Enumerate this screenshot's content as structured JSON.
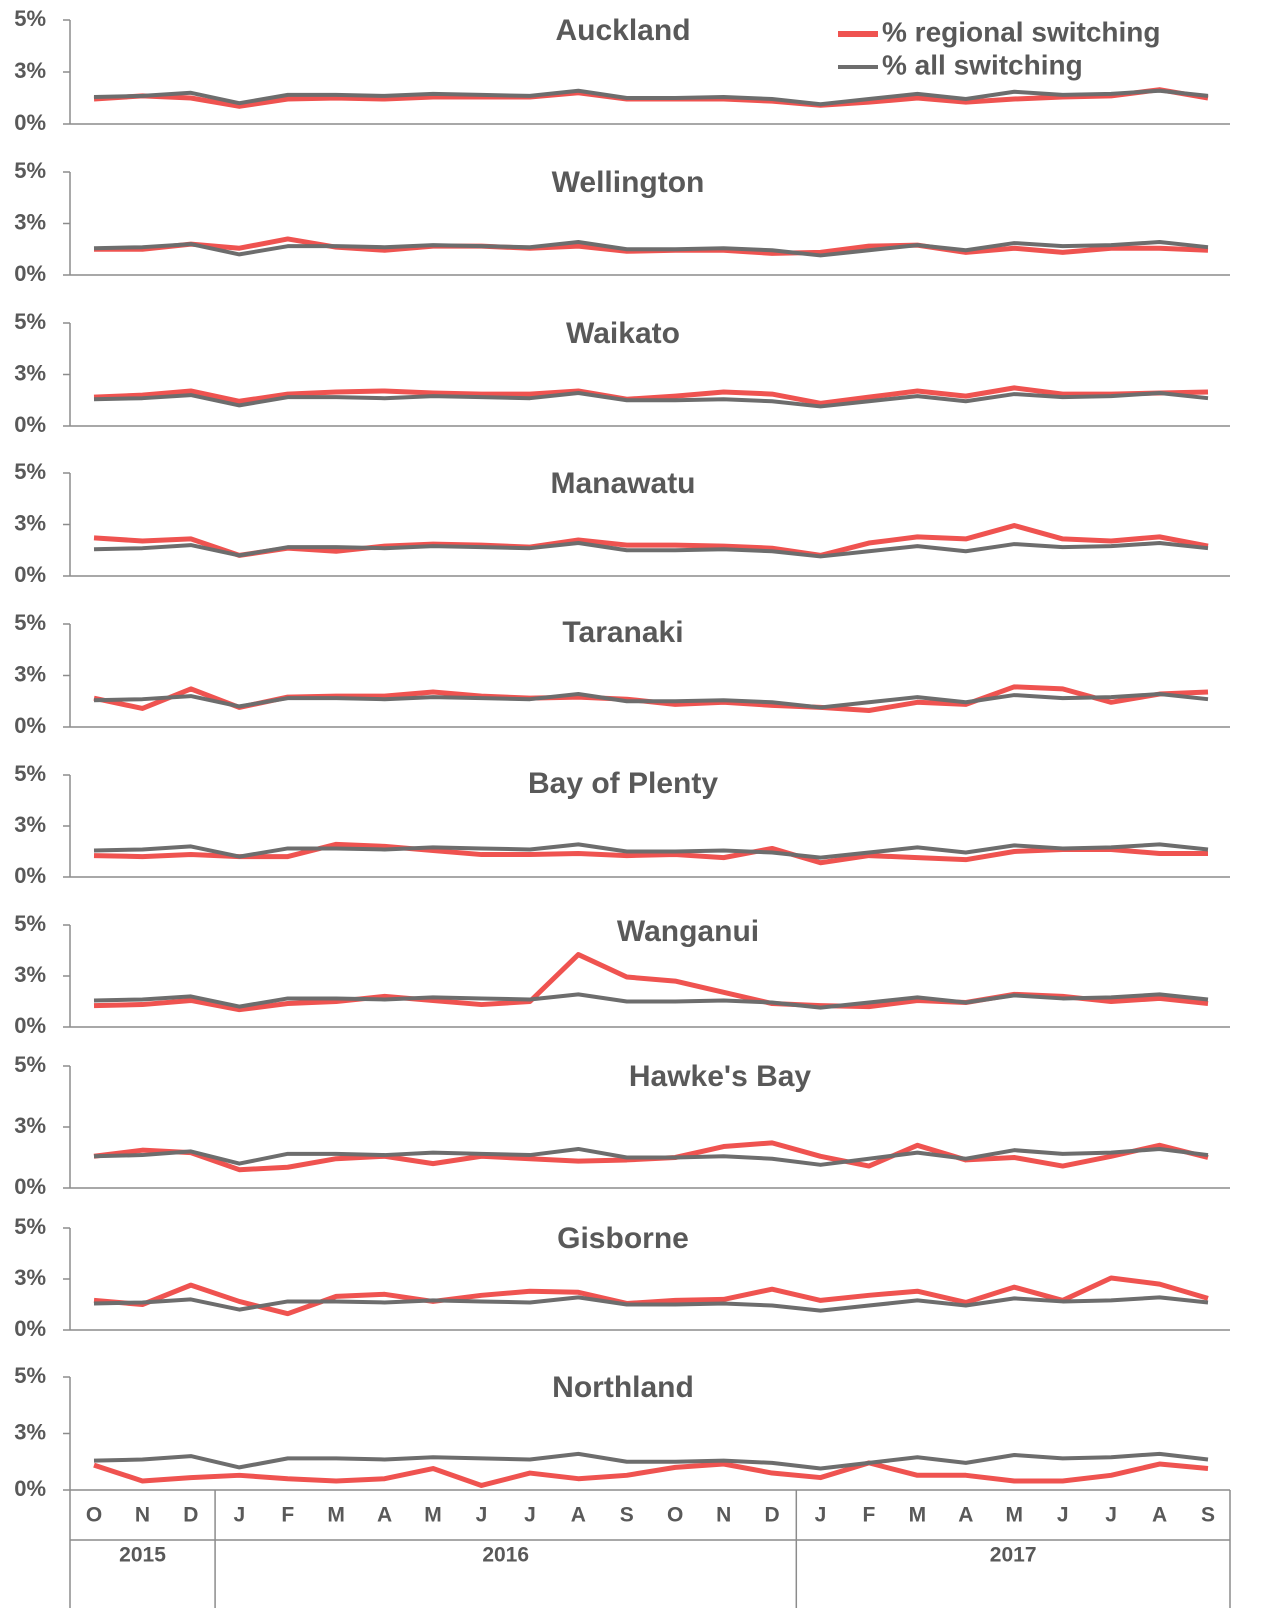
{
  "chart_data": [
    {
      "type": "line",
      "title": "Auckland",
      "legend": "upper right",
      "ylim": [
        0,
        5
      ],
      "yticks": [
        {
          "value": 0,
          "label": "0%"
        },
        {
          "value": 2.5,
          "label": "3%"
        },
        {
          "value": 5,
          "label": "5%"
        }
      ],
      "series": [
        {
          "name": "% regional switching",
          "color": "#ef5350",
          "values": [
            1.2,
            1.35,
            1.25,
            0.85,
            1.2,
            1.25,
            1.2,
            1.3,
            1.3,
            1.3,
            1.5,
            1.2,
            1.2,
            1.2,
            1.1,
            0.9,
            1.05,
            1.25,
            1.05,
            1.2,
            1.3,
            1.35,
            1.65,
            1.25
          ]
        },
        {
          "name": "% all switching",
          "color": "#6d6d6d",
          "values": [
            1.3,
            1.35,
            1.5,
            1.0,
            1.4,
            1.4,
            1.35,
            1.45,
            1.4,
            1.35,
            1.6,
            1.25,
            1.25,
            1.3,
            1.2,
            0.95,
            1.2,
            1.45,
            1.2,
            1.55,
            1.4,
            1.45,
            1.6,
            1.35
          ]
        }
      ]
    },
    {
      "type": "line",
      "title": "Wellington",
      "ylim": [
        0,
        5
      ],
      "yticks": [
        {
          "value": 0,
          "label": "0%"
        },
        {
          "value": 2.5,
          "label": "3%"
        },
        {
          "value": 5,
          "label": "5%"
        }
      ],
      "series": [
        {
          "color": "#ef5350",
          "values": [
            1.25,
            1.25,
            1.5,
            1.3,
            1.75,
            1.35,
            1.2,
            1.4,
            1.4,
            1.3,
            1.4,
            1.15,
            1.2,
            1.2,
            1.05,
            1.1,
            1.4,
            1.45,
            1.1,
            1.3,
            1.1,
            1.3,
            1.3,
            1.2
          ]
        },
        {
          "color": "#6d6d6d",
          "values": [
            1.3,
            1.35,
            1.5,
            1.0,
            1.4,
            1.4,
            1.35,
            1.45,
            1.4,
            1.35,
            1.6,
            1.25,
            1.25,
            1.3,
            1.2,
            0.95,
            1.2,
            1.45,
            1.2,
            1.55,
            1.4,
            1.45,
            1.6,
            1.35
          ]
        }
      ]
    },
    {
      "type": "line",
      "title": "Waikato",
      "ylim": [
        0,
        5
      ],
      "yticks": [
        {
          "value": 0,
          "label": "0%"
        },
        {
          "value": 2.5,
          "label": "3%"
        },
        {
          "value": 5,
          "label": "5%"
        }
      ],
      "series": [
        {
          "color": "#ef5350",
          "values": [
            1.4,
            1.5,
            1.7,
            1.2,
            1.55,
            1.65,
            1.7,
            1.6,
            1.55,
            1.55,
            1.7,
            1.3,
            1.45,
            1.65,
            1.55,
            1.1,
            1.4,
            1.7,
            1.45,
            1.85,
            1.55,
            1.55,
            1.6,
            1.65
          ]
        },
        {
          "color": "#6d6d6d",
          "values": [
            1.3,
            1.35,
            1.5,
            1.0,
            1.4,
            1.4,
            1.35,
            1.45,
            1.4,
            1.35,
            1.6,
            1.25,
            1.25,
            1.3,
            1.2,
            0.95,
            1.2,
            1.45,
            1.2,
            1.55,
            1.4,
            1.45,
            1.6,
            1.35
          ]
        }
      ]
    },
    {
      "type": "line",
      "title": "Manawatu",
      "ylim": [
        0,
        5
      ],
      "yticks": [
        {
          "value": 0,
          "label": "0%"
        },
        {
          "value": 2.5,
          "label": "3%"
        },
        {
          "value": 5,
          "label": "5%"
        }
      ],
      "series": [
        {
          "color": "#ef5350",
          "values": [
            1.85,
            1.7,
            1.8,
            1.0,
            1.35,
            1.2,
            1.45,
            1.55,
            1.5,
            1.4,
            1.75,
            1.5,
            1.5,
            1.45,
            1.35,
            1.0,
            1.6,
            1.9,
            1.8,
            2.45,
            1.8,
            1.7,
            1.9,
            1.45
          ]
        },
        {
          "color": "#6d6d6d",
          "values": [
            1.3,
            1.35,
            1.5,
            1.0,
            1.4,
            1.4,
            1.35,
            1.45,
            1.4,
            1.35,
            1.6,
            1.25,
            1.25,
            1.3,
            1.2,
            0.95,
            1.2,
            1.45,
            1.2,
            1.55,
            1.4,
            1.45,
            1.6,
            1.35
          ]
        }
      ]
    },
    {
      "type": "line",
      "title": "Taranaki",
      "ylim": [
        0,
        5
      ],
      "yticks": [
        {
          "value": 0,
          "label": "0%"
        },
        {
          "value": 2.5,
          "label": "3%"
        },
        {
          "value": 5,
          "label": "5%"
        }
      ],
      "series": [
        {
          "color": "#ef5350",
          "values": [
            1.4,
            0.9,
            1.85,
            0.95,
            1.45,
            1.5,
            1.5,
            1.7,
            1.5,
            1.4,
            1.45,
            1.35,
            1.1,
            1.2,
            1.05,
            0.95,
            0.8,
            1.2,
            1.1,
            1.95,
            1.85,
            1.2,
            1.6,
            1.7
          ]
        },
        {
          "color": "#6d6d6d",
          "values": [
            1.3,
            1.35,
            1.5,
            1.0,
            1.4,
            1.4,
            1.35,
            1.45,
            1.4,
            1.35,
            1.6,
            1.25,
            1.25,
            1.3,
            1.2,
            0.95,
            1.2,
            1.45,
            1.2,
            1.55,
            1.4,
            1.45,
            1.6,
            1.35
          ]
        }
      ]
    },
    {
      "type": "line",
      "title": "Bay of Plenty",
      "ylim": [
        0,
        5
      ],
      "yticks": [
        {
          "value": 0,
          "label": "0%"
        },
        {
          "value": 2.5,
          "label": "3%"
        },
        {
          "value": 5,
          "label": "5%"
        }
      ],
      "series": [
        {
          "color": "#ef5350",
          "values": [
            1.05,
            1.0,
            1.1,
            1.0,
            1.0,
            1.6,
            1.5,
            1.3,
            1.1,
            1.1,
            1.15,
            1.05,
            1.1,
            0.95,
            1.4,
            0.7,
            1.05,
            0.95,
            0.85,
            1.25,
            1.35,
            1.35,
            1.15,
            1.15
          ]
        },
        {
          "color": "#6d6d6d",
          "values": [
            1.3,
            1.35,
            1.5,
            1.0,
            1.4,
            1.4,
            1.35,
            1.45,
            1.4,
            1.35,
            1.6,
            1.25,
            1.25,
            1.3,
            1.2,
            0.95,
            1.2,
            1.45,
            1.2,
            1.55,
            1.4,
            1.45,
            1.6,
            1.35
          ]
        }
      ]
    },
    {
      "type": "line",
      "title": "Wanganui",
      "ylim": [
        0,
        5
      ],
      "yticks": [
        {
          "value": 0,
          "label": "0%"
        },
        {
          "value": 2.5,
          "label": "3%"
        },
        {
          "value": 5,
          "label": "5%"
        }
      ],
      "series": [
        {
          "color": "#ef5350",
          "values": [
            1.05,
            1.1,
            1.3,
            0.85,
            1.15,
            1.25,
            1.5,
            1.3,
            1.1,
            1.25,
            3.55,
            2.45,
            2.25,
            1.7,
            1.15,
            1.05,
            1.0,
            1.3,
            1.2,
            1.6,
            1.5,
            1.25,
            1.4,
            1.15
          ]
        },
        {
          "color": "#6d6d6d",
          "values": [
            1.3,
            1.35,
            1.5,
            1.0,
            1.4,
            1.4,
            1.35,
            1.45,
            1.4,
            1.35,
            1.6,
            1.25,
            1.25,
            1.3,
            1.2,
            0.95,
            1.2,
            1.45,
            1.2,
            1.55,
            1.4,
            1.45,
            1.6,
            1.35
          ]
        }
      ]
    },
    {
      "type": "line",
      "title": "Hawke's Bay",
      "ylim": [
        0,
        5
      ],
      "yticks": [
        {
          "value": 0,
          "label": "0%"
        },
        {
          "value": 2.5,
          "label": "3%"
        },
        {
          "value": 5,
          "label": "5%"
        }
      ],
      "series": [
        {
          "color": "#ef5350",
          "values": [
            1.3,
            1.55,
            1.45,
            0.75,
            0.85,
            1.2,
            1.3,
            1.0,
            1.3,
            1.2,
            1.1,
            1.15,
            1.25,
            1.7,
            1.85,
            1.3,
            0.9,
            1.75,
            1.15,
            1.25,
            0.9,
            1.3,
            1.75,
            1.25
          ]
        },
        {
          "color": "#6d6d6d",
          "values": [
            1.3,
            1.35,
            1.5,
            1.0,
            1.4,
            1.4,
            1.35,
            1.45,
            1.4,
            1.35,
            1.6,
            1.25,
            1.25,
            1.3,
            1.2,
            0.95,
            1.2,
            1.45,
            1.2,
            1.55,
            1.4,
            1.45,
            1.6,
            1.35
          ]
        }
      ]
    },
    {
      "type": "line",
      "title": "Gisborne",
      "ylim": [
        0,
        5
      ],
      "yticks": [
        {
          "value": 0,
          "label": "0%"
        },
        {
          "value": 2.5,
          "label": "3%"
        },
        {
          "value": 5,
          "label": "5%"
        }
      ],
      "series": [
        {
          "color": "#ef5350",
          "values": [
            1.45,
            1.25,
            2.2,
            1.4,
            0.8,
            1.65,
            1.75,
            1.4,
            1.7,
            1.9,
            1.85,
            1.3,
            1.45,
            1.5,
            2.0,
            1.45,
            1.7,
            1.9,
            1.35,
            2.1,
            1.45,
            2.55,
            2.25,
            1.55
          ]
        },
        {
          "color": "#6d6d6d",
          "values": [
            1.3,
            1.35,
            1.5,
            1.0,
            1.4,
            1.4,
            1.35,
            1.45,
            1.4,
            1.35,
            1.6,
            1.25,
            1.25,
            1.3,
            1.2,
            0.95,
            1.2,
            1.45,
            1.2,
            1.55,
            1.4,
            1.45,
            1.6,
            1.35
          ]
        }
      ]
    },
    {
      "type": "line",
      "title": "Northland",
      "ylim": [
        0,
        5
      ],
      "yticks": [
        {
          "value": 0,
          "label": "0%"
        },
        {
          "value": 2.5,
          "label": "3%"
        },
        {
          "value": 5,
          "label": "5%"
        }
      ],
      "categories": [
        "O",
        "N",
        "D",
        "J",
        "F",
        "M",
        "A",
        "M",
        "J",
        "J",
        "A",
        "S",
        "O",
        "N",
        "D",
        "J",
        "F",
        "M",
        "A",
        "M",
        "J",
        "J",
        "A",
        "S"
      ],
      "years": [
        "2015",
        "2016",
        "2017"
      ],
      "series": [
        {
          "color": "#ef5350",
          "values": [
            1.1,
            0.4,
            0.55,
            0.65,
            0.5,
            0.4,
            0.5,
            0.95,
            0.2,
            0.75,
            0.5,
            0.65,
            1.0,
            1.15,
            0.75,
            0.55,
            1.2,
            0.65,
            0.65,
            0.4,
            0.4,
            0.65,
            1.15,
            0.95
          ]
        },
        {
          "color": "#6d6d6d",
          "values": [
            1.3,
            1.35,
            1.5,
            1.0,
            1.4,
            1.4,
            1.35,
            1.45,
            1.4,
            1.35,
            1.6,
            1.25,
            1.25,
            1.3,
            1.2,
            0.95,
            1.2,
            1.45,
            1.2,
            1.55,
            1.4,
            1.45,
            1.6,
            1.35
          ]
        }
      ]
    }
  ]
}
